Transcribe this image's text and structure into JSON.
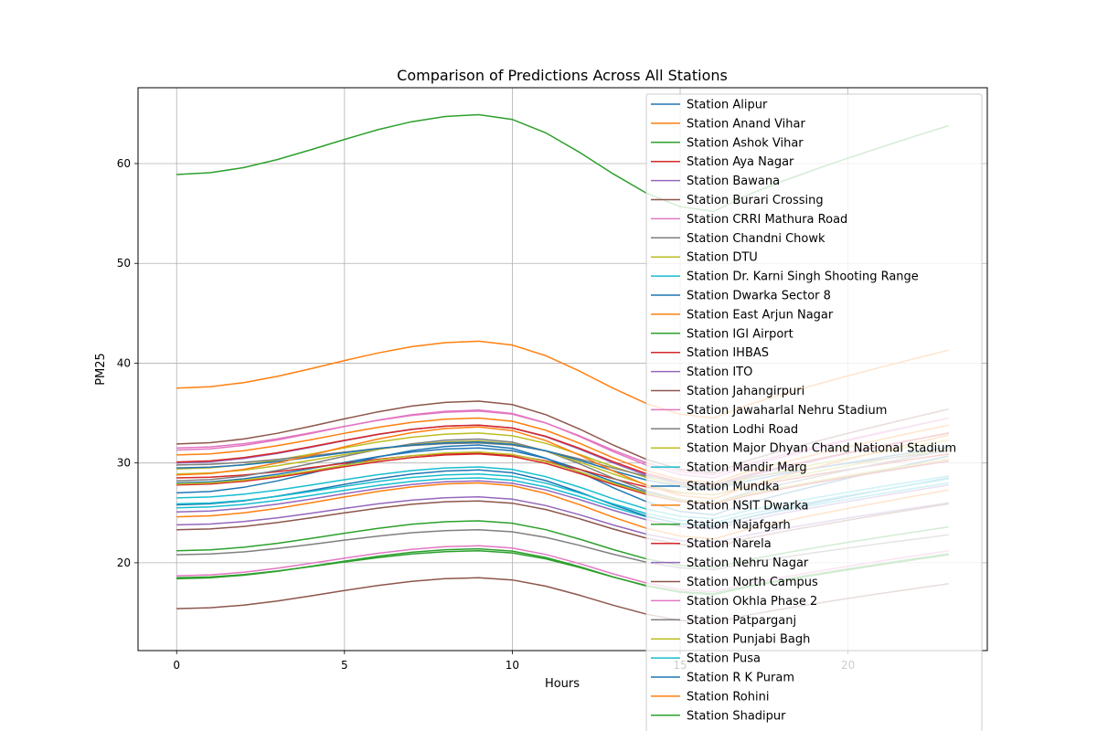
{
  "chart_data": {
    "type": "line",
    "title": "Comparison of Predictions Across All Stations",
    "xlabel": "Hours",
    "ylabel": "PM25",
    "xlim": [
      -1.15,
      24.15
    ],
    "ylim": [
      11.2,
      67.6
    ],
    "xticks": [
      0,
      5,
      10,
      15,
      20
    ],
    "yticks": [
      20,
      30,
      40,
      50,
      60
    ],
    "grid": true,
    "legend_position": "upper right",
    "x": [
      0,
      1,
      2,
      3,
      4,
      5,
      6,
      7,
      8,
      9,
      10,
      11,
      12,
      13,
      14,
      15,
      16,
      17,
      18,
      19,
      20,
      21,
      22,
      23
    ],
    "colors": [
      "#1f77b4",
      "#ff7f0e",
      "#2ca02c",
      "#d62728",
      "#9467bd",
      "#8c564b",
      "#e377c2",
      "#7f7f7f",
      "#bcbd22",
      "#17becf"
    ],
    "series": [
      {
        "name": "Station Alipur",
        "base": 28.0,
        "peak": 31.5,
        "min": 26.0,
        "end": 30.2
      },
      {
        "name": "Station Anand Vihar",
        "base": 37.5,
        "peak": 42.2,
        "min": 34.5,
        "end": 41.3
      },
      {
        "name": "Station Ashok Vihar",
        "base": 58.9,
        "peak": 64.9,
        "min": 55.2,
        "end": 63.8
      },
      {
        "name": "Station Aya Nagar",
        "base": 28.5,
        "peak": 31.0,
        "min": 26.8,
        "end": 30.9
      },
      {
        "name": "Station Bawana",
        "base": 30.0,
        "peak": 33.8,
        "min": 27.6,
        "end": 33.0
      },
      {
        "name": "Station Burari Crossing",
        "base": 31.9,
        "peak": 36.2,
        "min": 29.0,
        "end": 35.4
      },
      {
        "name": "Station CRRI Mathura Road",
        "base": 31.3,
        "peak": 35.3,
        "min": 28.5,
        "end": 34.5
      },
      {
        "name": "Station Chandni Chowk",
        "base": 28.2,
        "peak": 32.4,
        "min": 26.0,
        "end": 31.3
      },
      {
        "name": "Station DTU",
        "base": 29.4,
        "peak": 33.0,
        "min": 27.5,
        "end": 32.3
      },
      {
        "name": "Station Dr. Karni Singh Shooting Range",
        "base": 26.5,
        "peak": 29.6,
        "min": 24.4,
        "end": 28.7
      },
      {
        "name": "Station Dwarka Sector 8",
        "base": 27.0,
        "peak": 31.8,
        "min": 24.8,
        "end": 30.7
      },
      {
        "name": "Station East Arjun Nagar",
        "base": 30.8,
        "peak": 34.5,
        "min": 28.0,
        "end": 33.8
      },
      {
        "name": "Station IGI Airport",
        "base": 21.2,
        "peak": 24.2,
        "min": 19.5,
        "end": 23.6
      },
      {
        "name": "Station IHBAS",
        "base": 30.1,
        "peak": 33.8,
        "min": 27.8,
        "end": 33.0
      },
      {
        "name": "Station ITO",
        "base": 23.8,
        "peak": 26.6,
        "min": 22.0,
        "end": 26.0
      },
      {
        "name": "Station Jahangirpuri",
        "base": 23.3,
        "peak": 26.2,
        "min": 21.6,
        "end": 25.9
      },
      {
        "name": "Station Jawaharlal Nehru Stadium",
        "base": 31.5,
        "peak": 35.2,
        "min": 28.8,
        "end": 34.5
      },
      {
        "name": "Station Lodhi Road",
        "base": 20.8,
        "peak": 23.3,
        "min": 19.3,
        "end": 22.8
      },
      {
        "name": "Station Major Dhyan Chand National Stadium",
        "base": 28.9,
        "peak": 32.2,
        "min": 26.8,
        "end": 31.5
      },
      {
        "name": "Station Mandir Marg",
        "base": 25.5,
        "peak": 28.5,
        "min": 23.7,
        "end": 28.0
      },
      {
        "name": "Station Mundka",
        "base": 25.8,
        "peak": 29.3,
        "min": 23.6,
        "end": 28.5
      },
      {
        "name": "Station NSIT Dwarka",
        "base": 24.6,
        "peak": 28.0,
        "min": 22.4,
        "end": 27.3
      },
      {
        "name": "Station Najafgarh",
        "base": 18.4,
        "peak": 21.4,
        "min": 16.8,
        "end": 20.8
      },
      {
        "name": "Station Narela",
        "base": 27.8,
        "peak": 30.9,
        "min": 25.9,
        "end": 30.2
      },
      {
        "name": "Station Nehru Nagar",
        "base": 25.1,
        "peak": 28.2,
        "min": 23.4,
        "end": 27.8
      },
      {
        "name": "Station North Campus",
        "base": 15.4,
        "peak": 18.5,
        "min": 14.0,
        "end": 17.9
      },
      {
        "name": "Station Okhla Phase 2",
        "base": 18.7,
        "peak": 21.7,
        "min": 17.1,
        "end": 21.2
      },
      {
        "name": "Station Patparganj",
        "base": 29.8,
        "peak": 32.0,
        "min": 27.9,
        "end": 31.2
      },
      {
        "name": "Station Punjabi Bagh",
        "base": 27.9,
        "peak": 31.1,
        "min": 26.0,
        "end": 30.4
      },
      {
        "name": "Station Pusa",
        "base": 25.9,
        "peak": 28.9,
        "min": 24.0,
        "end": 28.4
      },
      {
        "name": "Station R K Puram",
        "base": 29.5,
        "peak": 32.1,
        "min": 27.4,
        "end": 31.6
      },
      {
        "name": "Station Rohini",
        "base": 28.8,
        "peak": 33.6,
        "min": 26.4,
        "end": 32.8
      },
      {
        "name": "Station Shadipur",
        "base": 18.5,
        "peak": 21.2,
        "min": 16.9,
        "end": 20.9
      }
    ]
  }
}
